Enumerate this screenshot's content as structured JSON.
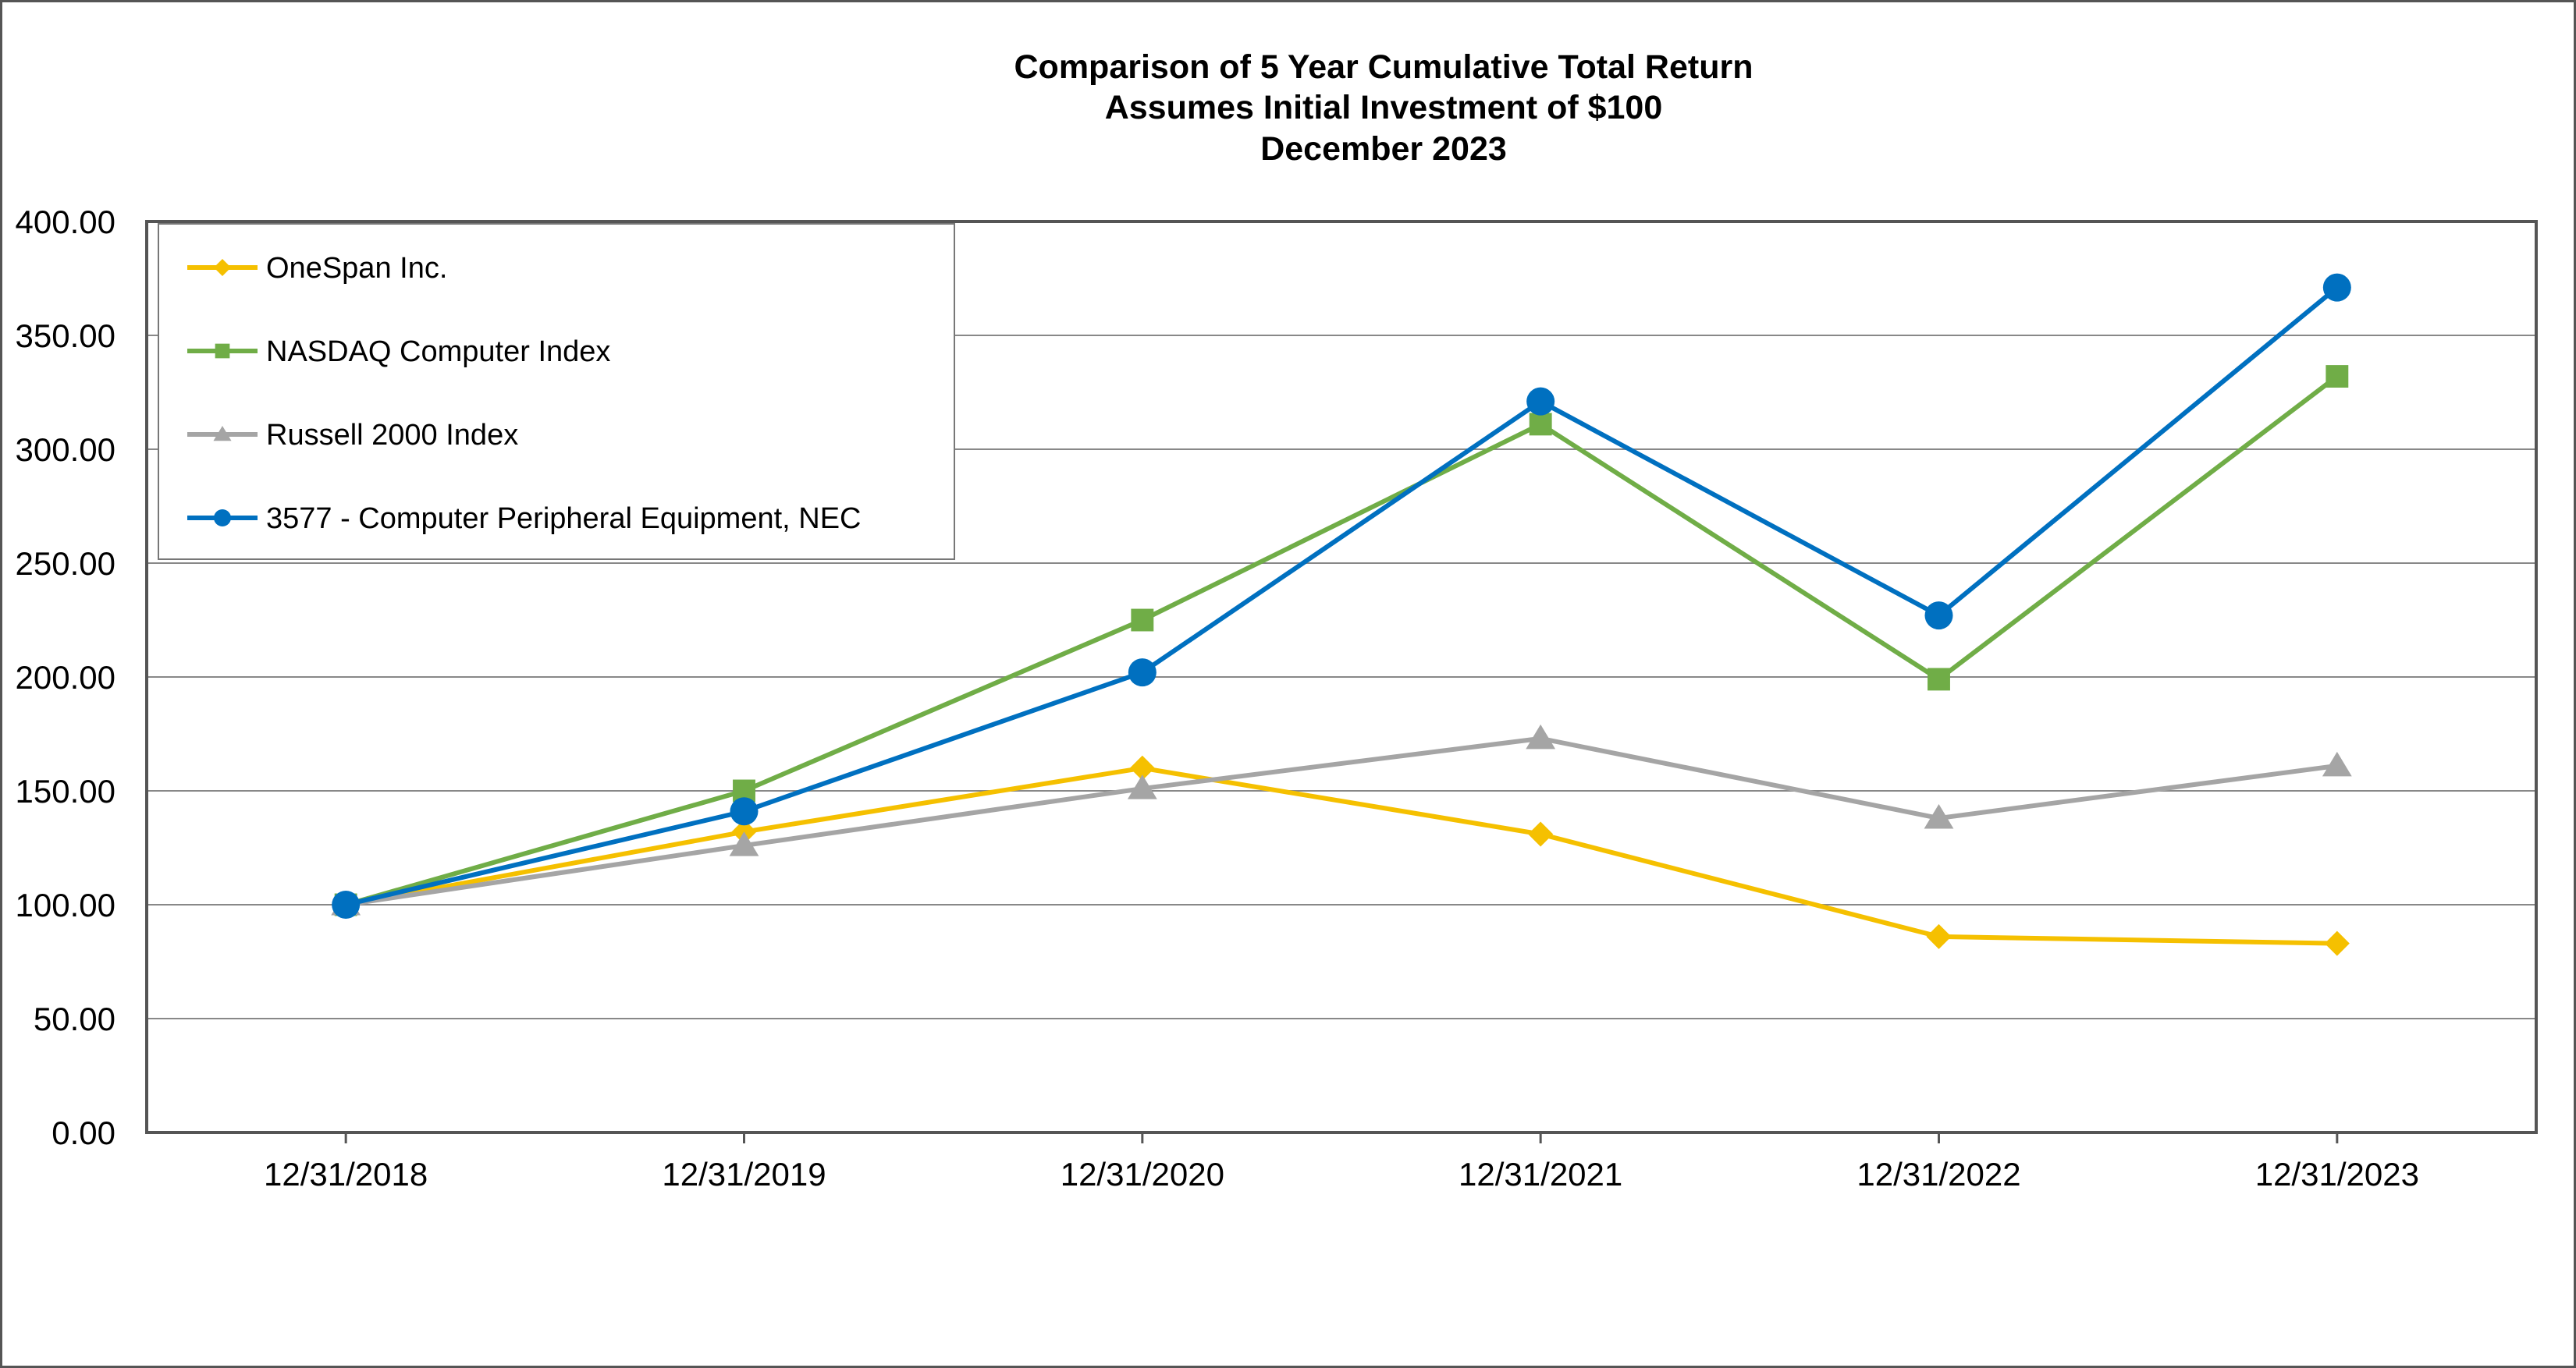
{
  "chart_data": {
    "type": "line",
    "title": [
      "Comparison of 5 Year Cumulative Total Return",
      "Assumes Initial Investment of $100",
      "December 2023"
    ],
    "categories": [
      "12/31/2018",
      "12/31/2019",
      "12/31/2020",
      "12/31/2021",
      "12/31/2022",
      "12/31/2023"
    ],
    "y_ticks": [
      "0.00",
      "50.00",
      "100.00",
      "150.00",
      "200.00",
      "250.00",
      "300.00",
      "350.00",
      "400.00"
    ],
    "ylim": [
      0,
      400
    ],
    "grid": true,
    "legend_position": "top-left",
    "series": [
      {
        "name": "OneSpan Inc.",
        "color": "#F5C000",
        "marker": "diamond",
        "values": [
          100,
          132,
          160,
          131,
          86,
          83
        ]
      },
      {
        "name": "NASDAQ Computer Index",
        "color": "#70AD47",
        "marker": "square",
        "values": [
          100,
          150,
          225,
          311,
          199,
          332
        ]
      },
      {
        "name": "Russell 2000 Index",
        "color": "#A5A5A5",
        "marker": "triangle",
        "values": [
          100,
          126,
          151,
          173,
          138,
          161
        ]
      },
      {
        "name": "3577 - Computer Peripheral Equipment, NEC",
        "color": "#0070C0",
        "marker": "circle",
        "values": [
          100,
          141,
          202,
          321,
          227,
          371
        ]
      }
    ]
  }
}
